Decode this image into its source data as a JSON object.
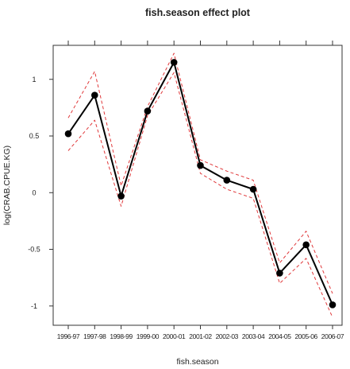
{
  "chart_data": {
    "type": "line",
    "title": "fish.season effect plot",
    "xlabel": "fish.season",
    "ylabel": "log(CRAB.CPUE.KG)",
    "categories": [
      "1996-97",
      "1997-98",
      "1998-99",
      "1999-00",
      "2000-01",
      "2001-02",
      "2002-03",
      "2003-04",
      "2004-05",
      "2005-06",
      "2006-07"
    ],
    "series": [
      {
        "role": "estimate",
        "values": [
          0.52,
          0.86,
          -0.03,
          0.72,
          1.15,
          0.24,
          0.11,
          0.03,
          -0.71,
          -0.46,
          -0.99
        ],
        "color": "#000000"
      },
      {
        "role": "upper-confidence-band",
        "values": [
          0.66,
          1.07,
          0.06,
          0.76,
          1.23,
          0.29,
          0.19,
          0.11,
          -0.62,
          -0.34,
          -0.89
        ],
        "color": "#e0383a"
      },
      {
        "role": "lower-confidence-band",
        "values": [
          0.37,
          0.64,
          -0.12,
          0.68,
          1.06,
          0.17,
          0.03,
          -0.05,
          -0.8,
          -0.58,
          -1.1
        ],
        "color": "#e0383a"
      }
    ],
    "yticks": [
      -1,
      -0.5,
      0,
      0.5,
      1
    ],
    "ytick_labels": [
      "-1",
      "-0.5",
      "0",
      "0.5",
      "1"
    ],
    "ylim": [
      -1.17,
      1.3
    ],
    "grid": false,
    "legend": "none"
  }
}
